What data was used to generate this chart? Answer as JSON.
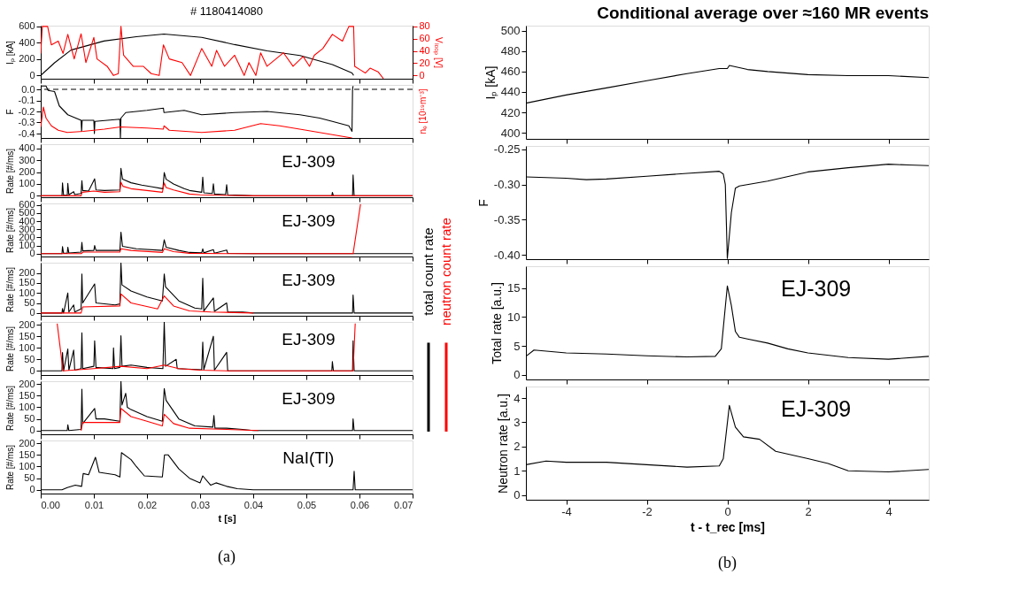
{
  "chart_data": [
    {
      "type": "line",
      "title": "# 1180414080",
      "ylabel": "Iₚ [kA]",
      "y2label": "Vₗₒₒₚ [V]",
      "xlim": [
        0,
        0.07
      ],
      "ylim": [
        -40,
        610
      ],
      "yticks": [
        0,
        200,
        400,
        600
      ],
      "y2lim": [
        -5.3,
        81.3
      ],
      "y2ticks": [
        0,
        20,
        40,
        60,
        80
      ],
      "tick_labels": "y",
      "series": [
        {
          "color": "#000000",
          "x": [
            0,
            0.0026,
            0.0057,
            0.0119,
            0.018,
            0.0232,
            0.0303,
            0.0365,
            0.0426,
            0.0488,
            0.0549,
            0.0586,
            0.0589
          ],
          "values": [
            0,
            155,
            311,
            422,
            475,
            507,
            467,
            378,
            302,
            244,
            133,
            31,
            0
          ]
        },
        {
          "color": "#ff0000",
          "axis": "y2",
          "x": [
            0,
            0.0003,
            0.0013,
            0.002,
            0.0033,
            0.0042,
            0.0051,
            0.0063,
            0.0076,
            0.0085,
            0.01,
            0.0106,
            0.0125,
            0.0137,
            0.0146,
            0.0151,
            0.0156,
            0.0174,
            0.0193,
            0.0208,
            0.0223,
            0.0231,
            0.0242,
            0.0266,
            0.0282,
            0.0303,
            0.0322,
            0.0331,
            0.0346,
            0.0365,
            0.0383,
            0.0392,
            0.0405,
            0.0414,
            0.0426,
            0.0457,
            0.0475,
            0.0494,
            0.0506,
            0.0515,
            0.0531,
            0.0549,
            0.0568,
            0.058,
            0.0589,
            0.0591,
            0.0602,
            0.0611,
            0.062,
            0.0635,
            0.0645
          ],
          "values": [
            36,
            80,
            80,
            50,
            56,
            36,
            67,
            27,
            68,
            21,
            62,
            27,
            15,
            0,
            3,
            80,
            33,
            15,
            15,
            3,
            0,
            50,
            27,
            21,
            0,
            44,
            15,
            41,
            15,
            33,
            0,
            21,
            0,
            37,
            15,
            37,
            15,
            31,
            15,
            33,
            44,
            67,
            56,
            80,
            80,
            15,
            9,
            4,
            12,
            6,
            -5
          ]
        }
      ]
    },
    {
      "type": "line",
      "ylabel": "F",
      "y2label": "nₑ [10¹⁹m⁻³]",
      "xlim": [
        0,
        0.07
      ],
      "ylim": [
        -0.44,
        0.04
      ],
      "yticks": [
        {
          "value": 0,
          "label": "0.0"
        },
        -0.1,
        -0.2,
        -0.3,
        -0.4
      ],
      "tick_labels": "y",
      "ref_lines": [
        {
          "axis": "y",
          "value": 0,
          "color": "#000000",
          "line_style": "dashed"
        }
      ],
      "series": [
        {
          "color": "#000000",
          "x": [
            0,
            0.001,
            0.0014,
            0.0026,
            0.0035,
            0.0051,
            0.0076,
            0.0077,
            0.0078,
            0.01,
            0.0101,
            0.0102,
            0.0149,
            0.015,
            0.0151,
            0.016,
            0.02,
            0.0231,
            0.0232,
            0.027,
            0.0303,
            0.0365,
            0.0426,
            0.0488,
            0.0525,
            0.0549,
            0.058,
            0.0586,
            0.0587,
            0.0588
          ],
          "values": [
            0.03,
            0.03,
            -0.01,
            -0.02,
            -0.15,
            -0.23,
            -0.28,
            -0.38,
            -0.28,
            -0.28,
            -0.4,
            -0.29,
            -0.27,
            -0.44,
            -0.26,
            -0.21,
            -0.19,
            -0.17,
            -0.21,
            -0.19,
            -0.23,
            -0.21,
            -0.2,
            -0.23,
            -0.26,
            -0.29,
            -0.33,
            -0.38,
            0,
            0.03
          ]
        },
        {
          "color": "#ff0000",
          "x": [
            0,
            0.0005,
            0.001,
            0.002,
            0.0033,
            0.005,
            0.008,
            0.012,
            0.015,
            0.02,
            0.0231,
            0.0232,
            0.0242,
            0.0303,
            0.0365,
            0.0414,
            0.045,
            0.05,
            0.0549,
            0.0586
          ],
          "values": [
            -0.34,
            -0.16,
            -0.26,
            -0.33,
            -0.37,
            -0.39,
            -0.38,
            -0.36,
            -0.34,
            -0.35,
            -0.36,
            -0.33,
            -0.37,
            -0.39,
            -0.37,
            -0.31,
            -0.33,
            -0.37,
            -0.41,
            -0.44
          ]
        }
      ]
    },
    {
      "type": "line",
      "ylabel": "Rate [#/ms]",
      "annotations": [
        "EJ-309"
      ],
      "legend": "right",
      "xlim": [
        0,
        0.07
      ],
      "ylim": [
        -12,
        435
      ],
      "yticks": [
        0,
        100,
        200,
        300,
        400
      ],
      "tick_labels": "y",
      "series": [
        {
          "name": "total count rate",
          "color": "#000000",
          "x": [
            0,
            0.004,
            0.0041,
            0.0043,
            0.005,
            0.0051,
            0.0053,
            0.0062,
            0.0064,
            0.0076,
            0.00775,
            0.0079,
            0.009,
            0.01015,
            0.0104,
            0.012,
            0.0149,
            0.0151,
            0.0154,
            0.017,
            0.019,
            0.021,
            0.023,
            0.02325,
            0.0236,
            0.025,
            0.027,
            0.028,
            0.0303,
            0.0305,
            0.0307,
            0.0323,
            0.0325,
            0.0327,
            0.0348,
            0.035,
            0.0352,
            0.038,
            0.04,
            0.0548,
            0.0549,
            0.0551,
            0.0587,
            0.0588,
            0.059,
            0.07
          ],
          "values": [
            0,
            0,
            108,
            5,
            5,
            105,
            8,
            35,
            10,
            20,
            128,
            45,
            40,
            143,
            50,
            45,
            50,
            231,
            140,
            110,
            90,
            75,
            60,
            196,
            140,
            100,
            60,
            45,
            30,
            158,
            25,
            20,
            102,
            15,
            10,
            93,
            8,
            5,
            0,
            0,
            29,
            0,
            0,
            175,
            0,
            0
          ]
        },
        {
          "name": "neutron count rate",
          "color": "#ff0000",
          "x": [
            0,
            0.0076,
            0.0078,
            0.01,
            0.012,
            0.0149,
            0.0151,
            0.0155,
            0.017,
            0.02,
            0.0229,
            0.02325,
            0.0236,
            0.025,
            0.028,
            0.03,
            0.035,
            0.04,
            0.07
          ],
          "values": [
            0,
            0,
            30,
            40,
            30,
            35,
            114,
            80,
            60,
            45,
            30,
            108,
            70,
            50,
            15,
            8,
            3,
            0,
            0
          ]
        }
      ]
    },
    {
      "type": "line",
      "ylabel": "Rate [#/ms]",
      "annotations": [
        "EJ-309"
      ],
      "xlim": [
        0,
        0.07
      ],
      "ylim": [
        -35,
        620
      ],
      "yticks": [
        0,
        100,
        200,
        300,
        400,
        500,
        600
      ],
      "tick_labels": "y",
      "series": [
        {
          "color": "#000000",
          "x": [
            0,
            0.004,
            0.0041,
            0.0043,
            0.005,
            0.0051,
            0.0053,
            0.0076,
            0.00775,
            0.0079,
            0.01,
            0.01015,
            0.0104,
            0.0149,
            0.0151,
            0.0154,
            0.018,
            0.0229,
            0.02325,
            0.0236,
            0.026,
            0.028,
            0.0303,
            0.0305,
            0.0307,
            0.0325,
            0.0327,
            0.035,
            0.0352,
            0.04,
            0.07
          ],
          "values": [
            0,
            0,
            86,
            5,
            5,
            80,
            8,
            20,
            140,
            35,
            40,
            100,
            40,
            40,
            266,
            90,
            60,
            40,
            172,
            80,
            40,
            15,
            10,
            60,
            10,
            50,
            5,
            45,
            3,
            0,
            0
          ]
        },
        {
          "color": "#ff0000",
          "x": [
            0,
            0.0076,
            0.008,
            0.0149,
            0.0151,
            0.017,
            0.0229,
            0.02325,
            0.025,
            0.028,
            0.035,
            0.0588,
            0.0602
          ],
          "values": [
            0,
            0,
            20,
            20,
            60,
            40,
            15,
            60,
            25,
            5,
            0,
            0,
            610
          ]
        }
      ]
    },
    {
      "type": "line",
      "ylabel": "Rate [#/ms]",
      "annotations": [
        "EJ-309"
      ],
      "xlim": [
        0,
        0.07
      ],
      "ylim": [
        -14,
        251
      ],
      "yticks": [
        0,
        50,
        100,
        150,
        200
      ],
      "tick_labels": "y",
      "series": [
        {
          "color": "#000000",
          "x": [
            0,
            0.004,
            0.0041,
            0.0043,
            0.0051,
            0.0053,
            0.0062,
            0.0064,
            0.0076,
            0.00775,
            0.0079,
            0.01015,
            0.0104,
            0.014,
            0.0149,
            0.0151,
            0.0153,
            0.017,
            0.02,
            0.0229,
            0.02325,
            0.0235,
            0.026,
            0.029,
            0.0303,
            0.0305,
            0.0307,
            0.0325,
            0.0327,
            0.035,
            0.0352,
            0.038,
            0.04,
            0.0587,
            0.0588,
            0.059,
            0.07
          ],
          "values": [
            0,
            0,
            22,
            0,
            100,
            5,
            40,
            5,
            20,
            195,
            50,
            145,
            50,
            40,
            45,
            250,
            140,
            110,
            80,
            60,
            195,
            130,
            60,
            25,
            20,
            173,
            10,
            75,
            8,
            50,
            5,
            5,
            0,
            0,
            90,
            0,
            0
          ]
        },
        {
          "color": "#ff0000",
          "x": [
            0,
            0.0076,
            0.0079,
            0.0149,
            0.0151,
            0.017,
            0.022,
            0.02325,
            0.025,
            0.028,
            0.032,
            0.04
          ],
          "values": [
            0,
            0,
            30,
            35,
            95,
            50,
            20,
            85,
            35,
            10,
            5,
            0
          ]
        }
      ]
    },
    {
      "type": "line",
      "ylabel": "Rate [#/ms]",
      "annotations": [
        "EJ-309"
      ],
      "xlim": [
        0,
        0.07
      ],
      "ylim": [
        -18,
        212
      ],
      "yticks": [
        0,
        50,
        100,
        150,
        200
      ],
      "tick_labels": "y",
      "series": [
        {
          "color": "#000000",
          "x": [
            0,
            0.004,
            0.0041,
            0.0043,
            0.0051,
            0.0053,
            0.0062,
            0.0064,
            0.0076,
            0.00775,
            0.0079,
            0.01,
            0.01015,
            0.0104,
            0.0136,
            0.0137,
            0.0139,
            0.0149,
            0.0151,
            0.0153,
            0.017,
            0.02,
            0.023,
            0.02325,
            0.0235,
            0.0255,
            0.0257,
            0.0303,
            0.0305,
            0.0307,
            0.0325,
            0.0327,
            0.035,
            0.0352,
            0.0548,
            0.0549,
            0.0551,
            0.0587,
            0.0588,
            0.059,
            0.07
          ],
          "values": [
            0,
            0,
            80,
            0,
            95,
            3,
            90,
            3,
            10,
            165,
            10,
            20,
            130,
            15,
            10,
            100,
            10,
            15,
            152,
            20,
            25,
            15,
            10,
            212,
            20,
            50,
            10,
            5,
            125,
            5,
            150,
            3,
            80,
            0,
            0,
            40,
            0,
            0,
            130,
            0,
            0
          ]
        },
        {
          "color": "#ff0000",
          "x": [
            0.0031,
            0.0042,
            0.01,
            0.0151,
            0.02,
            0.02325,
            0.026,
            0.03,
            0.035,
            0.0588,
            0.0592
          ],
          "values": [
            205,
            0,
            10,
            20,
            10,
            25,
            10,
            3,
            0,
            0,
            205
          ]
        }
      ]
    },
    {
      "type": "line",
      "ylabel": "Rate [#/ms]",
      "annotations": [
        "EJ-309"
      ],
      "xlim": [
        0,
        0.07
      ],
      "ylim": [
        -16,
        212
      ],
      "yticks": [
        0,
        50,
        100,
        150,
        200
      ],
      "tick_labels": "y",
      "series": [
        {
          "color": "#000000",
          "x": [
            0,
            0.005,
            0.0051,
            0.0053,
            0.0076,
            0.00775,
            0.0079,
            0.01015,
            0.0104,
            0.012,
            0.0149,
            0.0151,
            0.0153,
            0.016,
            0.0163,
            0.017,
            0.02,
            0.0229,
            0.02325,
            0.0236,
            0.026,
            0.029,
            0.0324,
            0.0326,
            0.0328,
            0.035,
            0.038,
            0.04,
            0.0587,
            0.0588,
            0.059,
            0.07
          ],
          "values": [
            0,
            0,
            25,
            0,
            5,
            178,
            30,
            95,
            50,
            50,
            40,
            212,
            110,
            160,
            100,
            90,
            60,
            40,
            180,
            130,
            50,
            20,
            15,
            65,
            10,
            10,
            5,
            0,
            0,
            50,
            0,
            0
          ]
        },
        {
          "color": "#ff0000",
          "x": [
            0.0076,
            0.0079,
            0.0149,
            0.0151,
            0.017,
            0.02,
            0.0229,
            0.02325,
            0.025,
            0.028,
            0.035,
            0.041
          ],
          "values": [
            0,
            35,
            35,
            95,
            60,
            40,
            20,
            70,
            30,
            10,
            5,
            0
          ]
        }
      ]
    },
    {
      "type": "line",
      "ylabel": "Rate [#/ms]",
      "xlabel": "t [s]",
      "annotations": [
        "NaI(Tl)",
        "(a)"
      ],
      "xlim": [
        0,
        0.07
      ],
      "xticks": [
        {
          "value": 0,
          "label": "0.00"
        },
        0.01,
        0.02,
        0.03,
        0.04,
        0.05,
        0.06,
        0.07
      ],
      "ylim": [
        -16,
        212
      ],
      "yticks": [
        0,
        50,
        100,
        150,
        200
      ],
      "series": [
        {
          "color": "#000000",
          "x": [
            0,
            0.004,
            0.005,
            0.0065,
            0.0077,
            0.008,
            0.009,
            0.0103,
            0.011,
            0.014,
            0.0149,
            0.0152,
            0.017,
            0.018,
            0.0195,
            0.0229,
            0.0233,
            0.024,
            0.026,
            0.028,
            0.03,
            0.0305,
            0.032,
            0.033,
            0.035,
            0.037,
            0.04,
            0.0588,
            0.059,
            0.0592,
            0.07
          ],
          "values": [
            0,
            0,
            10,
            20,
            15,
            70,
            65,
            140,
            75,
            65,
            55,
            160,
            130,
            100,
            60,
            55,
            150,
            150,
            90,
            50,
            30,
            60,
            20,
            30,
            15,
            5,
            0,
            0,
            80,
            0,
            0
          ]
        }
      ]
    },
    {
      "type": "line",
      "title": "Conditional average over ≈160 MR events",
      "ylabel": "Iₚ [kA]",
      "xlim": [
        -5,
        5
      ],
      "ylim": [
        394,
        505
      ],
      "yticks": [
        400,
        420,
        440,
        460,
        480,
        500
      ],
      "tick_labels": "y",
      "series": [
        {
          "color": "#000000",
          "x": [
            -5,
            -4,
            -3,
            -2,
            -1,
            -0.2,
            0,
            0.05,
            0.5,
            1,
            2,
            3,
            4,
            5
          ],
          "values": [
            429,
            437,
            444,
            451,
            458,
            463,
            463,
            466,
            462,
            460,
            457,
            456,
            456,
            454
          ]
        }
      ]
    },
    {
      "type": "line",
      "ylabel": "F",
      "xlim": [
        -5,
        5
      ],
      "ylim": [
        -0.406,
        -0.245
      ],
      "yticks": [
        -0.25,
        {
          "value": -0.3,
          "label": "-0.30"
        },
        -0.35,
        {
          "value": -0.4,
          "label": "-0.40"
        }
      ],
      "tick_labels": "y",
      "series": [
        {
          "color": "#000000",
          "x": [
            -5,
            -4,
            -3.5,
            -3,
            -2,
            -1,
            -0.2,
            -0.1,
            -0.05,
            0,
            0.1,
            0.2,
            0.3,
            1,
            2,
            3,
            4,
            4.5,
            5
          ],
          "values": [
            -0.289,
            -0.291,
            -0.293,
            -0.292,
            -0.288,
            -0.284,
            -0.281,
            -0.285,
            -0.3,
            -0.405,
            -0.34,
            -0.305,
            -0.302,
            -0.295,
            -0.282,
            -0.276,
            -0.271,
            -0.272,
            -0.273
          ]
        }
      ]
    },
    {
      "type": "line",
      "ylabel": "Total rate [a.u.]",
      "annotations": [
        "EJ-309"
      ],
      "xlim": [
        -5,
        5
      ],
      "ylim": [
        -0.8,
        18.8
      ],
      "yticks": [
        0,
        5,
        10,
        15
      ],
      "tick_labels": "y",
      "series": [
        {
          "color": "#000000",
          "x": [
            -5,
            -4.8,
            -4,
            -3,
            -2,
            -1,
            -0.3,
            -0.15,
            0,
            0.1,
            0.2,
            0.3,
            0.5,
            1,
            1.5,
            2,
            3,
            4,
            5
          ],
          "values": [
            3.2,
            4.3,
            3.8,
            3.6,
            3.3,
            3.1,
            3.2,
            4.5,
            15.4,
            12,
            7.5,
            6.5,
            6.2,
            5.5,
            4.5,
            3.8,
            3.0,
            2.7,
            3.2
          ]
        }
      ]
    },
    {
      "type": "line",
      "ylabel": "Neutron rate [a.u.]",
      "xlabel": "t - t_rec [ms]",
      "annotations": [
        "EJ-309",
        "(b)"
      ],
      "xlim": [
        -5,
        5
      ],
      "xticks": [
        -4,
        -2,
        0,
        2,
        4
      ],
      "ylim": [
        -0.2,
        4.48
      ],
      "yticks": [
        0,
        1,
        2,
        3,
        4
      ],
      "series": [
        {
          "color": "#000000",
          "x": [
            -5,
            -4.5,
            -4,
            -3,
            -2,
            -1,
            -0.2,
            -0.1,
            0.05,
            0.2,
            0.4,
            0.8,
            1.2,
            2,
            2.5,
            3,
            4,
            5
          ],
          "values": [
            1.25,
            1.4,
            1.35,
            1.35,
            1.25,
            1.15,
            1.2,
            1.5,
            3.7,
            2.8,
            2.4,
            2.3,
            1.8,
            1.5,
            1.3,
            1.0,
            0.95,
            1.05
          ]
        }
      ]
    }
  ]
}
